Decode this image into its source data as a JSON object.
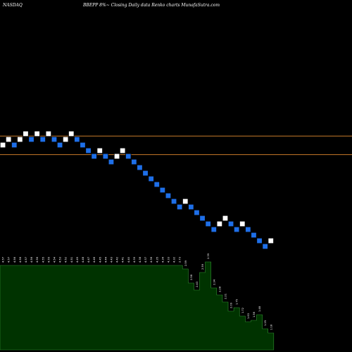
{
  "header": {
    "exchange": "NASDAQ",
    "title": "BBEPP 8%~  Closing Daily data  Renko  charts MunafaSutra.com"
  },
  "colors": {
    "background": "#000000",
    "up_brick": "#ffffff",
    "down_brick": "#1e6fe8",
    "brick_outline": "#000000",
    "reference_line": "#c87a2a",
    "volume_fill": "#003300",
    "volume_stroke": "#2f8f2f",
    "volume_label": "#ffffff"
  },
  "chart_data": [
    {
      "type": "renko",
      "title": "BBEPP 8%~  Closing Daily data  Renko  charts",
      "bricks": [
        {
          "dir": "up",
          "level": 0
        },
        {
          "dir": "up",
          "level": 1
        },
        {
          "dir": "down",
          "level": 0
        },
        {
          "dir": "up",
          "level": 1
        },
        {
          "dir": "up",
          "level": 2
        },
        {
          "dir": "down",
          "level": 1
        },
        {
          "dir": "up",
          "level": 2
        },
        {
          "dir": "down",
          "level": 1
        },
        {
          "dir": "up",
          "level": 2
        },
        {
          "dir": "down",
          "level": 1
        },
        {
          "dir": "down",
          "level": 0
        },
        {
          "dir": "up",
          "level": 1
        },
        {
          "dir": "up",
          "level": 2
        },
        {
          "dir": "down",
          "level": 1
        },
        {
          "dir": "down",
          "level": 0
        },
        {
          "dir": "down",
          "level": -1
        },
        {
          "dir": "down",
          "level": -2
        },
        {
          "dir": "up",
          "level": -1
        },
        {
          "dir": "down",
          "level": -2
        },
        {
          "dir": "down",
          "level": -3
        },
        {
          "dir": "up",
          "level": -2
        },
        {
          "dir": "up",
          "level": -1
        },
        {
          "dir": "down",
          "level": -2
        },
        {
          "dir": "down",
          "level": -3
        },
        {
          "dir": "down",
          "level": -4
        },
        {
          "dir": "down",
          "level": -5
        },
        {
          "dir": "down",
          "level": -6
        },
        {
          "dir": "down",
          "level": -7
        },
        {
          "dir": "down",
          "level": -8
        },
        {
          "dir": "down",
          "level": -9
        },
        {
          "dir": "down",
          "level": -10
        },
        {
          "dir": "down",
          "level": -11
        },
        {
          "dir": "up",
          "level": -10
        },
        {
          "dir": "down",
          "level": -11
        },
        {
          "dir": "down",
          "level": -12
        },
        {
          "dir": "down",
          "level": -13
        },
        {
          "dir": "down",
          "level": -14
        },
        {
          "dir": "down",
          "level": -15
        },
        {
          "dir": "up",
          "level": -14
        },
        {
          "dir": "up",
          "level": -13
        },
        {
          "dir": "down",
          "level": -14
        },
        {
          "dir": "down",
          "level": -15
        },
        {
          "dir": "up",
          "level": -14
        },
        {
          "dir": "down",
          "level": -15
        },
        {
          "dir": "down",
          "level": -16
        },
        {
          "dir": "down",
          "level": -17
        },
        {
          "dir": "down",
          "level": -18
        },
        {
          "dir": "up",
          "level": -17
        }
      ],
      "reference_lines": [
        {
          "level": 1.6
        },
        {
          "level": -1.7
        }
      ],
      "volume": {
        "labels": [
          "4.57",
          "4.57",
          "4.56",
          "4.56",
          "4.57",
          "4.56",
          "4.56",
          "4.55",
          "4.55",
          "4.54",
          "4.53",
          "4.52",
          "4.51",
          "4.49",
          "4.48",
          "4.47",
          "4.46",
          "4.45",
          "4.44",
          "4.43",
          "4.42",
          "4.41",
          "4.40",
          "4.39",
          "4.38",
          "4.37",
          "4.36",
          "4.35",
          "4.34",
          "4.33",
          "4.32",
          "2.73",
          "2.59",
          "2.58",
          "2.43",
          "2.59",
          "2.39",
          "2.34",
          "2.28",
          "2.21",
          "2.09",
          "1.75",
          "1.72",
          "1.63",
          "1.56",
          "1.48",
          "1.25",
          "1.18"
        ],
        "values": [
          120,
          120,
          120,
          120,
          120,
          120,
          120,
          120,
          120,
          120,
          120,
          120,
          120,
          120,
          120,
          120,
          120,
          120,
          120,
          120,
          120,
          120,
          120,
          120,
          120,
          120,
          120,
          120,
          120,
          120,
          120,
          120,
          115,
          95,
          85,
          110,
          125,
          88,
          78,
          68,
          55,
          60,
          48,
          40,
          42,
          50,
          30,
          24
        ]
      }
    }
  ]
}
